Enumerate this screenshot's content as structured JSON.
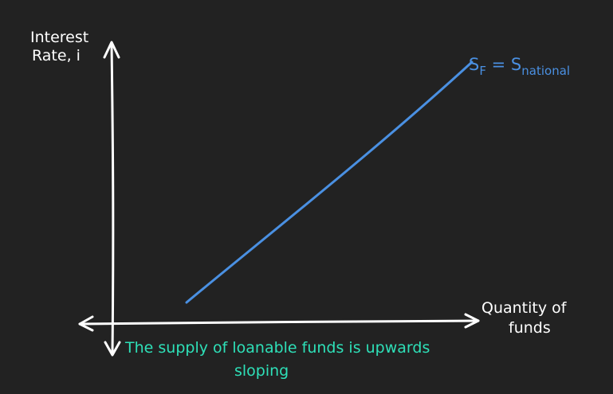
{
  "y_axis_label": {
    "line1": "Interest",
    "line2": "Rate, i"
  },
  "x_axis_label": {
    "line1": "Quantity of",
    "line2": "funds"
  },
  "curve_label": {
    "main": "S",
    "sub_f": "F",
    "equals": " = S",
    "sub_national": "national"
  },
  "caption": {
    "line1": "The supply of loanable funds is upwards",
    "line2": "sloping"
  },
  "colors": {
    "background": "#222222",
    "axes": "#ffffff",
    "supply_curve": "#4a90e2",
    "caption": "#2ee0b8"
  }
}
